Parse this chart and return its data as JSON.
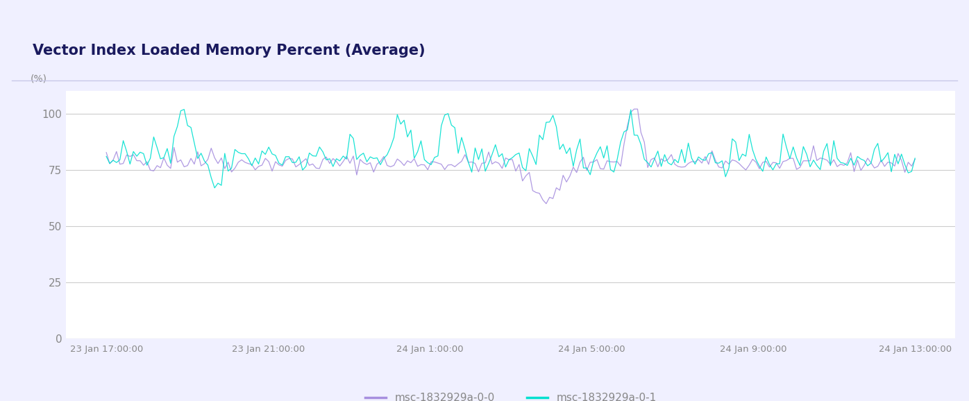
{
  "title": "Vector Index Loaded Memory Percent (Average)",
  "ylabel": "(%)",
  "ylim": [
    0,
    110
  ],
  "yticks": [
    0,
    25,
    50,
    75,
    100
  ],
  "outer_bg_color": "#f0f0ff",
  "title_bg_color": "#eceeff",
  "plot_bg_color": "#ffffff",
  "grid_color": "#cccccc",
  "title_color": "#1a1a5e",
  "tick_color": "#888888",
  "border_color": "#c8c8e8",
  "series0_color": "#a78fdf",
  "series1_color": "#00e0d0",
  "series0_label": "msc-1832929a-0-0",
  "series1_label": "msc-1832929a-0-1",
  "x_tick_labels": [
    "23 Jan 17:00:00",
    "23 Jan 21:00:00",
    "24 Jan 1:00:00",
    "24 Jan 5:00:00",
    "24 Jan 9:00:00",
    "24 Jan 13:00:00"
  ],
  "n_points": 240
}
